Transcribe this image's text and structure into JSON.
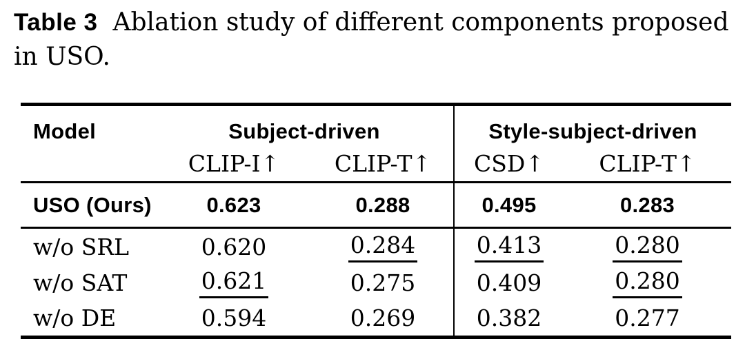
{
  "caption": {
    "label": "Table 3",
    "line1": "Ablation study of different components proposed",
    "line2": "in USO."
  },
  "table": {
    "header": {
      "model": "Model",
      "groups": [
        {
          "label": "Subject-driven"
        },
        {
          "label": "Style-subject-driven"
        }
      ],
      "subheaders": [
        "CLIP-I↑",
        "CLIP-T↑",
        "CSD↑",
        "CLIP-T↑"
      ]
    },
    "rows": [
      {
        "model": "USO (Ours)",
        "values": [
          "0.623",
          "0.288",
          "0.495",
          "0.283"
        ],
        "emphasis": "bold"
      },
      {
        "model": "w/o SRL",
        "values": [
          "0.620",
          "0.284",
          "0.413",
          "0.280"
        ],
        "underlined": [
          false,
          true,
          true,
          true
        ]
      },
      {
        "model": "w/o SAT",
        "values": [
          "0.621",
          "0.275",
          "0.409",
          "0.280"
        ],
        "underlined": [
          true,
          false,
          false,
          true
        ]
      },
      {
        "model": "w/o DE",
        "values": [
          "0.594",
          "0.269",
          "0.382",
          "0.277"
        ],
        "underlined": [
          false,
          false,
          false,
          false
        ]
      }
    ]
  }
}
